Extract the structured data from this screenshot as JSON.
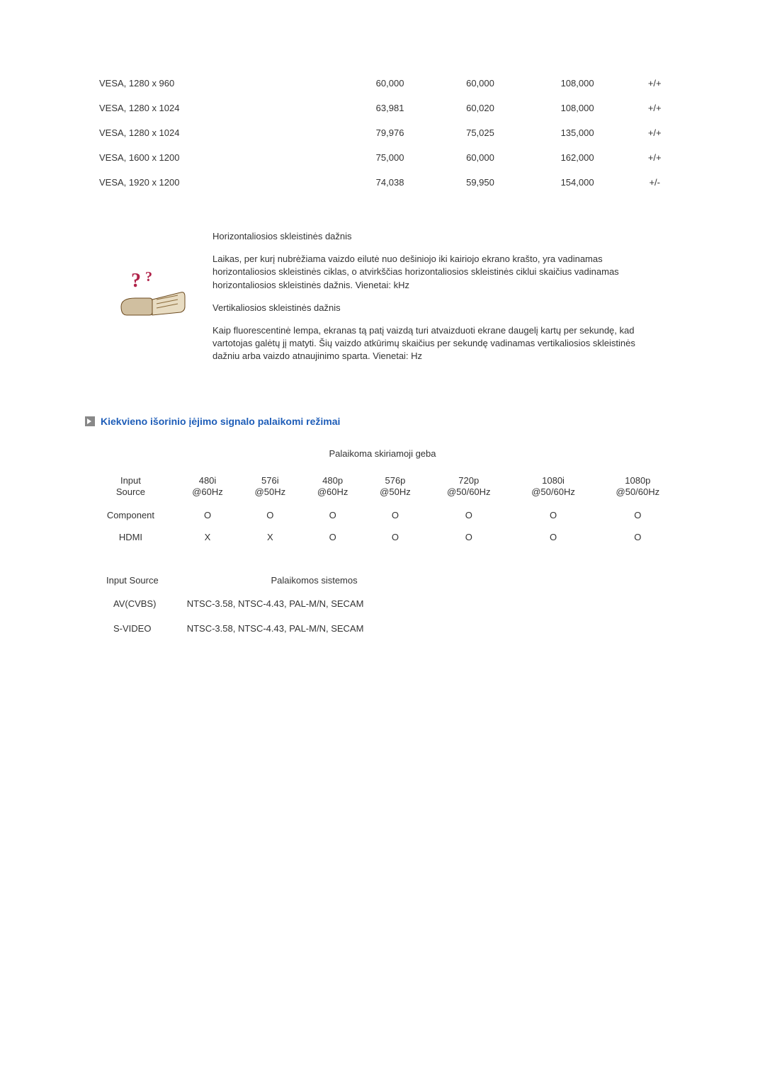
{
  "timing_table": {
    "rows": [
      {
        "mode": "VESA, 1280 x 960",
        "hfreq": "60,000",
        "vfreq": "60,000",
        "pclock": "108,000",
        "pol": "+/+"
      },
      {
        "mode": "VESA, 1280 x 1024",
        "hfreq": "63,981",
        "vfreq": "60,020",
        "pclock": "108,000",
        "pol": "+/+"
      },
      {
        "mode": "VESA, 1280 x 1024",
        "hfreq": "79,976",
        "vfreq": "75,025",
        "pclock": "135,000",
        "pol": "+/+"
      },
      {
        "mode": "VESA, 1600 x 1200",
        "hfreq": "75,000",
        "vfreq": "60,000",
        "pclock": "162,000",
        "pol": "+/+"
      },
      {
        "mode": "VESA, 1920 x 1200",
        "hfreq": "74,038",
        "vfreq": "59,950",
        "pclock": "154,000",
        "pol": "+/-"
      }
    ]
  },
  "info": {
    "h_title": "Horizontaliosios skleistinės dažnis",
    "h_body": "Laikas, per kurį nubrėžiama vaizdo eilutė nuo dešiniojo iki kairiojo ekrano krašto, yra vadinamas horizontaliosios skleistinės ciklas, o atvirkščias horizontaliosios skleistinės ciklui skaičius vadinamas horizontaliosios skleistinės dažnis. Vienetai: kHz",
    "v_title": "Vertikaliosios skleistinės dažnis",
    "v_body": "Kaip fluorescentinė lempa, ekranas tą patį vaizdą turi atvaizduoti ekrane daugelį kartų per sekundę, kad vartotojas galėtų jį matyti. Šių vaizdo atkūrimų skaičius per sekundę vadinamas vertikaliosios skleistinės dažniu arba vaizdo atnaujinimo sparta. Vienetai: Hz"
  },
  "section_title": "Kiekvieno išorinio įėjimo signalo palaikomi režimai",
  "res_caption": "Palaikoma skiriamoji geba",
  "res_table": {
    "headers": [
      "Input Source",
      "480i @60Hz",
      "576i @50Hz",
      "480p @60Hz",
      "576p @50Hz",
      "720p @50/60Hz",
      "1080i @50/60Hz",
      "1080p @50/60Hz"
    ],
    "rows": [
      {
        "label": "Component",
        "v": [
          "O",
          "O",
          "O",
          "O",
          "O",
          "O",
          "O"
        ]
      },
      {
        "label": "HDMI",
        "v": [
          "X",
          "X",
          "O",
          "O",
          "O",
          "O",
          "O"
        ]
      }
    ]
  },
  "sys_table": {
    "head_source": "Input Source",
    "head_systems": "Palaikomos sistemos",
    "rows": [
      {
        "src": "AV(CVBS)",
        "sys": "NTSC-3.58, NTSC-4.43, PAL-M/N, SECAM"
      },
      {
        "src": "S-VIDEO",
        "sys": "NTSC-3.58, NTSC-4.43, PAL-M/N, SECAM"
      }
    ]
  }
}
